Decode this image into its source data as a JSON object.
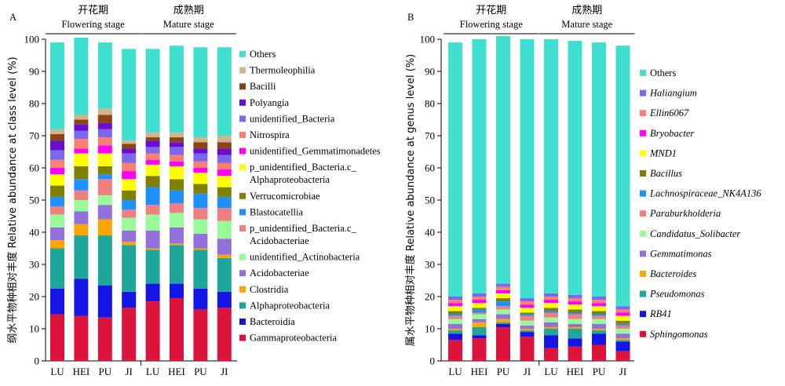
{
  "chart_data": [
    {
      "type": "bar",
      "stacked": true,
      "panel_label": "A",
      "ylabel": "纲水平物种相对丰度 Relative abundance at class level (%)",
      "ylim": [
        0,
        100
      ],
      "yticks": [
        0,
        10,
        20,
        30,
        40,
        50,
        60,
        70,
        80,
        90,
        100
      ],
      "groups": [
        {
          "label_cn": "开花期",
          "label_en": "Flowering stage",
          "categories": [
            0,
            1,
            2,
            3
          ]
        },
        {
          "label_cn": "成熟期",
          "label_en": "Mature stage",
          "categories": [
            4,
            5,
            6,
            7
          ]
        }
      ],
      "categories": [
        "LU",
        "HEI",
        "PU",
        "JI",
        "LU",
        "HEI",
        "PU",
        "JI"
      ],
      "legend_italic": false,
      "series": [
        {
          "name": "Gammaproteobacteria",
          "color": "#dc143c",
          "values": [
            14.5,
            14.0,
            13.5,
            16.5,
            18.5,
            19.5,
            16.0,
            16.5
          ]
        },
        {
          "name": "Bacteroidia",
          "color": "#1414e6",
          "values": [
            8.0,
            11.5,
            10.0,
            5.0,
            5.5,
            4.5,
            6.5,
            5.0
          ]
        },
        {
          "name": "Alphaproteobacteria",
          "color": "#1fa69a",
          "values": [
            12.5,
            13.5,
            15.5,
            14.5,
            10.5,
            12.0,
            12.0,
            10.5
          ]
        },
        {
          "name": "Clostridia",
          "color": "#ffa500",
          "values": [
            2.5,
            3.5,
            5.0,
            1.0,
            0.5,
            0.5,
            0.5,
            1.0
          ]
        },
        {
          "name": "Acidobacteriae",
          "color": "#9370db",
          "values": [
            4.0,
            4.0,
            4.5,
            3.5,
            5.5,
            5.0,
            4.5,
            5.0
          ]
        },
        {
          "name": "unidentified_Actinobacteria",
          "color": "#98fb98",
          "values": [
            4.0,
            3.5,
            3.0,
            4.0,
            5.0,
            4.5,
            4.5,
            5.5
          ]
        },
        {
          "name": "p_unidentified_Bacteria.c_Acidobacteriae",
          "color": "#f08080",
          "values": [
            2.5,
            3.0,
            5.0,
            2.5,
            3.0,
            3.0,
            3.5,
            4.0
          ]
        },
        {
          "name": "Blastocatellia",
          "color": "#1e90ff",
          "values": [
            3.0,
            3.5,
            1.5,
            3.0,
            5.5,
            4.0,
            4.5,
            3.5
          ]
        },
        {
          "name": "Verrucomicrobiae",
          "color": "#808000",
          "values": [
            3.5,
            4.0,
            2.5,
            3.0,
            3.5,
            3.5,
            3.0,
            3.0
          ]
        },
        {
          "name": "p_unidentified_Bacteria.c_Alphaproteobacteria",
          "color": "#ffff00",
          "values": [
            3.5,
            4.0,
            4.0,
            3.5,
            3.5,
            4.0,
            3.5,
            3.5
          ]
        },
        {
          "name": "unidentified_Gemmatimonadetes",
          "color": "#ff00ff",
          "values": [
            2.0,
            1.5,
            2.5,
            2.5,
            1.5,
            1.5,
            1.5,
            2.0
          ]
        },
        {
          "name": "Nitrospira",
          "color": "#fa8072",
          "values": [
            2.5,
            3.0,
            2.5,
            2.5,
            2.0,
            2.0,
            2.0,
            2.0
          ]
        },
        {
          "name": "unidentified_Bacteria",
          "color": "#7b68ee",
          "values": [
            3.0,
            2.5,
            2.5,
            3.0,
            2.0,
            2.5,
            2.5,
            2.5
          ]
        },
        {
          "name": "Polyangia",
          "color": "#6a0dcc",
          "values": [
            3.0,
            2.0,
            2.0,
            1.5,
            2.0,
            1.5,
            1.5,
            2.0
          ]
        },
        {
          "name": "Bacilli",
          "color": "#8b4513",
          "values": [
            2.0,
            1.5,
            2.5,
            1.5,
            1.0,
            1.5,
            2.0,
            2.0
          ]
        },
        {
          "name": "Thermoleophilia",
          "color": "#d2b48c",
          "values": [
            1.5,
            1.5,
            2.0,
            1.0,
            1.5,
            1.5,
            1.5,
            2.0
          ]
        },
        {
          "name": "Others",
          "color": "#40e0d0",
          "values": [
            27.0,
            24.0,
            20.5,
            28.5,
            26.0,
            27.0,
            28.0,
            27.5
          ]
        }
      ]
    },
    {
      "type": "bar",
      "stacked": true,
      "panel_label": "B",
      "ylabel": "属水平物种相对丰度 Relative abundance at genus level (%)",
      "ylim": [
        0,
        100
      ],
      "yticks": [
        0,
        10,
        20,
        30,
        40,
        50,
        60,
        70,
        80,
        90,
        100
      ],
      "groups": [
        {
          "label_cn": "开花期",
          "label_en": "Flowering stage",
          "categories": [
            0,
            1,
            2,
            3
          ]
        },
        {
          "label_cn": "成熟期",
          "label_en": "Mature stage",
          "categories": [
            4,
            5,
            6,
            7
          ]
        }
      ],
      "categories": [
        "LU",
        "HEI",
        "PU",
        "JI",
        "LU",
        "HEI",
        "PU",
        "JI"
      ],
      "legend_italic": true,
      "series": [
        {
          "name": "Sphingomonas",
          "color": "#dc143c",
          "values": [
            6.5,
            7.0,
            10.5,
            7.5,
            4.0,
            4.5,
            5.0,
            3.0
          ]
        },
        {
          "name": "RB41",
          "color": "#1414e6",
          "values": [
            2.0,
            1.0,
            1.0,
            1.5,
            4.0,
            2.5,
            3.5,
            3.0
          ]
        },
        {
          "name": "Pseudomonas",
          "color": "#1fa69a",
          "values": [
            1.0,
            2.5,
            0.5,
            0.5,
            2.0,
            3.0,
            1.0,
            0.5
          ]
        },
        {
          "name": "Bacteroides",
          "color": "#ffa500",
          "values": [
            0.5,
            1.5,
            1.0,
            0.5,
            0.5,
            0.5,
            0.5,
            0.5
          ]
        },
        {
          "name": "Gemmatimonas",
          "color": "#9370db",
          "values": [
            1.5,
            1.0,
            1.5,
            1.0,
            1.5,
            1.0,
            1.5,
            1.5
          ]
        },
        {
          "name": "Candidatus_Solibacter",
          "color": "#98fb98",
          "values": [
            1.5,
            1.5,
            1.5,
            1.5,
            1.5,
            1.5,
            1.5,
            1.5
          ]
        },
        {
          "name": "Paraburkholderia",
          "color": "#f08080",
          "values": [
            1.0,
            0.5,
            1.0,
            1.5,
            1.5,
            1.5,
            1.0,
            1.0
          ]
        },
        {
          "name": "Lachnospiraceae_NK4A136",
          "color": "#1e90ff",
          "values": [
            0.5,
            1.0,
            1.5,
            0.5,
            0.5,
            0.5,
            0.5,
            0.5
          ]
        },
        {
          "name": "Bacillus",
          "color": "#808000",
          "values": [
            1.0,
            0.5,
            1.0,
            0.5,
            1.0,
            1.0,
            1.0,
            1.0
          ]
        },
        {
          "name": "MND1",
          "color": "#ffff00",
          "values": [
            1.5,
            1.5,
            1.5,
            1.5,
            1.5,
            1.5,
            1.5,
            1.5
          ]
        },
        {
          "name": "Bryobacter",
          "color": "#ff00ff",
          "values": [
            1.0,
            1.0,
            1.0,
            1.0,
            1.0,
            1.0,
            1.0,
            1.0
          ]
        },
        {
          "name": "Ellin6067",
          "color": "#fa8072",
          "values": [
            1.0,
            1.0,
            1.0,
            1.0,
            1.0,
            1.0,
            1.0,
            1.0
          ]
        },
        {
          "name": "Haliangium",
          "color": "#7b68ee",
          "values": [
            1.0,
            1.0,
            1.0,
            1.0,
            1.0,
            1.0,
            1.0,
            1.0
          ]
        },
        {
          "name": "Others",
          "color": "#40e0d0",
          "values": [
            79.0,
            79.0,
            77.0,
            80.5,
            79.0,
            79.0,
            79.0,
            81.0
          ]
        }
      ]
    }
  ]
}
